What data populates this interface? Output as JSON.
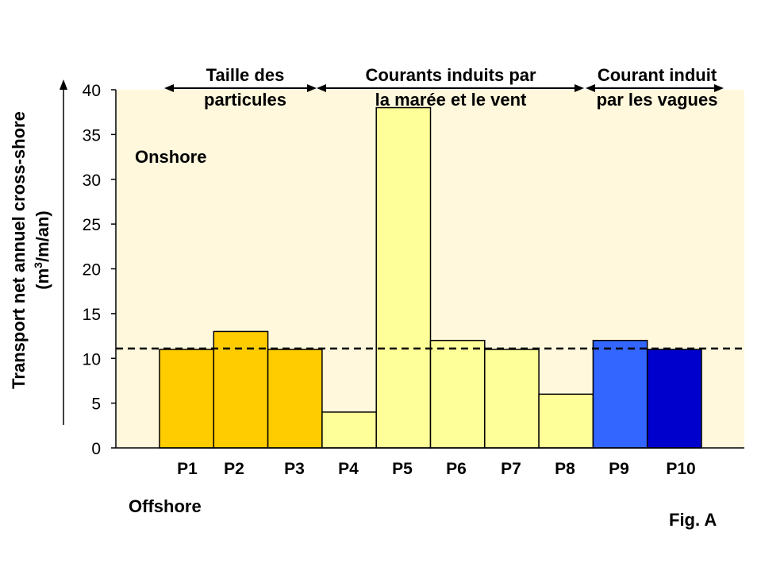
{
  "chart_data": {
    "type": "bar",
    "categories": [
      "P1",
      "P2",
      "P3",
      "P4",
      "P5",
      "P6",
      "P7",
      "P8",
      "P9",
      "P10"
    ],
    "values": [
      11,
      13,
      11,
      4,
      38,
      12,
      11,
      6,
      12,
      11
    ],
    "bar_colors": [
      "#FFCC00",
      "#FFCC00",
      "#FFCC00",
      "#FFFF99",
      "#FFFF99",
      "#FFFF99",
      "#FFFF99",
      "#FFFF99",
      "#3366FF",
      "#0000CC"
    ],
    "ylabel_line1": "Transport net annuel cross-shore",
    "ylabel_line2_base": "(m",
    "ylabel_line2_sup": "3",
    "ylabel_line2_end": "/m/an)",
    "ylim": [
      0,
      40
    ],
    "yticks": [
      0,
      5,
      10,
      15,
      20,
      25,
      30,
      35,
      40
    ],
    "reference_line": 11.1,
    "plot_background": "#FFF8DC",
    "grid": false,
    "annotations": {
      "onshore": "Onshore",
      "offshore": "Offshore",
      "fig_label": "Fig. A"
    },
    "groups": [
      {
        "line1": "Taille des",
        "line2": "particules"
      },
      {
        "line1": "Courants induits par",
        "line2": "la marée et le vent"
      },
      {
        "line1": "Courant induit",
        "line2": "par les vagues"
      }
    ]
  }
}
